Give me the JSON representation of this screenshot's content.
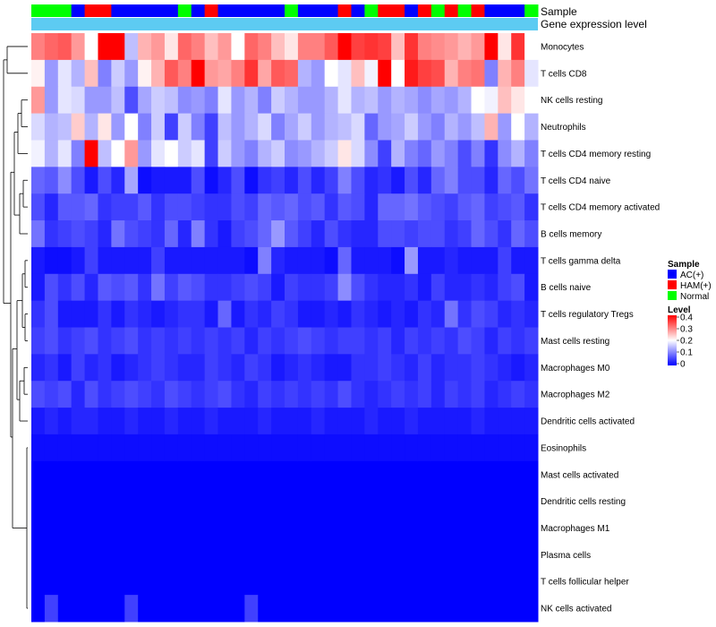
{
  "chart_data": {
    "type": "heatmap",
    "annotations": {
      "sample_label": "Sample",
      "gene_label": "Gene expression level",
      "sample_groups": [
        "Normal",
        "Normal",
        "Normal",
        "AC(+)",
        "HAM(+)",
        "HAM(+)",
        "AC(+)",
        "AC(+)",
        "AC(+)",
        "AC(+)",
        "AC(+)",
        "Normal",
        "AC(+)",
        "HAM(+)",
        "AC(+)",
        "AC(+)",
        "AC(+)",
        "AC(+)",
        "AC(+)",
        "Normal",
        "AC(+)",
        "AC(+)",
        "AC(+)",
        "HAM(+)",
        "AC(+)",
        "Normal",
        "HAM(+)",
        "HAM(+)",
        "AC(+)",
        "HAM(+)",
        "Normal",
        "HAM(+)",
        "Normal",
        "HAM(+)",
        "AC(+)",
        "AC(+)",
        "AC(+)",
        "Normal"
      ]
    },
    "rows": [
      "Monocytes",
      "T cells CD8",
      "NK cells resting",
      "Neutrophils",
      "T cells CD4 memory resting",
      "T cells CD4 naive",
      "T cells CD4 memory activated",
      "B cells memory",
      "T cells gamma delta",
      "B cells naive",
      "T cells regulatory  Tregs",
      "Mast cells resting",
      "Macrophages M0",
      "Macrophages M2",
      "Dendritic cells activated",
      "Eosinophils",
      "Mast cells activated",
      "Dendritic cells resting",
      "Macrophages M1",
      "Plasma cells",
      "T cells follicular helper",
      "NK cells activated"
    ],
    "values": [
      [
        0.3,
        0.32,
        0.33,
        0.28,
        0.2,
        0.42,
        0.42,
        0.15,
        0.26,
        0.28,
        0.22,
        0.32,
        0.3,
        0.25,
        0.28,
        0.2,
        0.32,
        0.3,
        0.25,
        0.22,
        0.3,
        0.3,
        0.33,
        0.42,
        0.35,
        0.36,
        0.35,
        0.25,
        0.36,
        0.3,
        0.29,
        0.28,
        0.26,
        0.28,
        0.4,
        0.22,
        0.36,
        0.2
      ],
      [
        0.21,
        0.12,
        0.18,
        0.14,
        0.25,
        0.1,
        0.16,
        0.12,
        0.21,
        0.26,
        0.33,
        0.3,
        0.4,
        0.28,
        0.27,
        0.3,
        0.36,
        0.27,
        0.33,
        0.32,
        0.14,
        0.12,
        0.2,
        0.18,
        0.25,
        0.19,
        0.4,
        0.2,
        0.38,
        0.35,
        0.34,
        0.26,
        0.3,
        0.31,
        0.1,
        0.26,
        0.3,
        0.18
      ],
      [
        0.28,
        0.12,
        0.18,
        0.17,
        0.12,
        0.12,
        0.15,
        0.06,
        0.13,
        0.16,
        0.15,
        0.11,
        0.12,
        0.1,
        0.18,
        0.12,
        0.14,
        0.1,
        0.16,
        0.14,
        0.12,
        0.12,
        0.14,
        0.18,
        0.14,
        0.15,
        0.12,
        0.14,
        0.13,
        0.11,
        0.13,
        0.12,
        0.14,
        0.2,
        0.19,
        0.25,
        0.22,
        0.2
      ],
      [
        0.17,
        0.14,
        0.15,
        0.24,
        0.14,
        0.22,
        0.12,
        0.2,
        0.1,
        0.16,
        0.05,
        0.16,
        0.1,
        0.05,
        0.15,
        0.12,
        0.14,
        0.17,
        0.1,
        0.13,
        0.16,
        0.12,
        0.14,
        0.15,
        0.17,
        0.08,
        0.12,
        0.13,
        0.16,
        0.12,
        0.1,
        0.14,
        0.12,
        0.15,
        0.26,
        0.12,
        0.2,
        0.14
      ],
      [
        0.19,
        0.14,
        0.18,
        0.1,
        0.4,
        0.15,
        0.2,
        0.28,
        0.12,
        0.18,
        0.2,
        0.16,
        0.18,
        0.05,
        0.16,
        0.12,
        0.1,
        0.14,
        0.16,
        0.11,
        0.12,
        0.14,
        0.16,
        0.22,
        0.17,
        0.11,
        0.05,
        0.14,
        0.1,
        0.08,
        0.12,
        0.1,
        0.06,
        0.1,
        0.04,
        0.11,
        0.14,
        0.1
      ],
      [
        0.08,
        0.07,
        0.11,
        0.06,
        0.02,
        0.06,
        0.03,
        0.13,
        0.01,
        0.02,
        0.02,
        0.02,
        0.06,
        0.01,
        0.03,
        0.06,
        0.01,
        0.04,
        0.05,
        0.03,
        0.06,
        0.03,
        0.05,
        0.1,
        0.06,
        0.03,
        0.04,
        0.02,
        0.06,
        0.03,
        0.08,
        0.1,
        0.06,
        0.06,
        0.03,
        0.08,
        0.06,
        0.09
      ],
      [
        0.06,
        0.03,
        0.07,
        0.07,
        0.08,
        0.04,
        0.05,
        0.05,
        0.07,
        0.04,
        0.06,
        0.06,
        0.05,
        0.04,
        0.04,
        0.06,
        0.05,
        0.08,
        0.07,
        0.08,
        0.06,
        0.07,
        0.04,
        0.07,
        0.06,
        0.03,
        0.08,
        0.08,
        0.09,
        0.07,
        0.06,
        0.05,
        0.07,
        0.08,
        0.05,
        0.06,
        0.07,
        0.04
      ],
      [
        0.09,
        0.04,
        0.05,
        0.06,
        0.05,
        0.03,
        0.09,
        0.06,
        0.05,
        0.04,
        0.08,
        0.03,
        0.1,
        0.04,
        0.02,
        0.05,
        0.06,
        0.08,
        0.12,
        0.07,
        0.05,
        0.03,
        0.06,
        0.04,
        0.03,
        0.03,
        0.06,
        0.06,
        0.05,
        0.06,
        0.06,
        0.04,
        0.05,
        0.08,
        0.06,
        0.04,
        0.08,
        0.06
      ],
      [
        0.02,
        0.01,
        0.01,
        0.02,
        0.05,
        0.02,
        0.02,
        0.02,
        0.02,
        0.05,
        0.02,
        0.02,
        0.02,
        0.02,
        0.02,
        0.02,
        0.01,
        0.1,
        0.03,
        0.02,
        0.02,
        0.02,
        0.01,
        0.08,
        0.02,
        0.02,
        0.02,
        0.01,
        0.12,
        0.02,
        0.02,
        0.03,
        0.02,
        0.02,
        0.02,
        0.05,
        0.02,
        0.02
      ],
      [
        0.02,
        0.06,
        0.04,
        0.06,
        0.03,
        0.07,
        0.06,
        0.07,
        0.04,
        0.09,
        0.05,
        0.07,
        0.06,
        0.04,
        0.04,
        0.05,
        0.06,
        0.05,
        0.02,
        0.05,
        0.04,
        0.04,
        0.05,
        0.11,
        0.06,
        0.04,
        0.03,
        0.03,
        0.04,
        0.02,
        0.05,
        0.03,
        0.03,
        0.04,
        0.03,
        0.05,
        0.06,
        0.02
      ],
      [
        0.04,
        0.06,
        0.02,
        0.02,
        0.02,
        0.04,
        0.02,
        0.04,
        0.03,
        0.02,
        0.03,
        0.04,
        0.04,
        0.02,
        0.08,
        0.02,
        0.04,
        0.03,
        0.05,
        0.04,
        0.02,
        0.02,
        0.03,
        0.02,
        0.04,
        0.03,
        0.02,
        0.03,
        0.02,
        0.04,
        0.03,
        0.09,
        0.04,
        0.06,
        0.05,
        0.03,
        0.04,
        0.03
      ],
      [
        0.05,
        0.06,
        0.04,
        0.05,
        0.06,
        0.04,
        0.05,
        0.06,
        0.04,
        0.05,
        0.04,
        0.05,
        0.04,
        0.05,
        0.04,
        0.05,
        0.03,
        0.05,
        0.04,
        0.05,
        0.06,
        0.05,
        0.04,
        0.05,
        0.05,
        0.04,
        0.05,
        0.03,
        0.05,
        0.04,
        0.05,
        0.04,
        0.06,
        0.05,
        0.03,
        0.05,
        0.04,
        0.05
      ],
      [
        0.03,
        0.04,
        0.02,
        0.05,
        0.03,
        0.04,
        0.02,
        0.03,
        0.04,
        0.05,
        0.04,
        0.03,
        0.03,
        0.05,
        0.04,
        0.03,
        0.05,
        0.04,
        0.02,
        0.03,
        0.04,
        0.03,
        0.02,
        0.02,
        0.04,
        0.04,
        0.05,
        0.04,
        0.03,
        0.05,
        0.03,
        0.04,
        0.04,
        0.05,
        0.04,
        0.03,
        0.02,
        0.03
      ],
      [
        0.06,
        0.05,
        0.06,
        0.03,
        0.06,
        0.04,
        0.05,
        0.06,
        0.05,
        0.04,
        0.06,
        0.05,
        0.04,
        0.05,
        0.06,
        0.04,
        0.03,
        0.05,
        0.04,
        0.05,
        0.04,
        0.05,
        0.04,
        0.06,
        0.04,
        0.03,
        0.04,
        0.05,
        0.04,
        0.05,
        0.03,
        0.05,
        0.04,
        0.05,
        0.03,
        0.04,
        0.05,
        0.04
      ],
      [
        0.02,
        0.03,
        0.02,
        0.03,
        0.03,
        0.02,
        0.02,
        0.03,
        0.02,
        0.02,
        0.03,
        0.02,
        0.02,
        0.03,
        0.02,
        0.02,
        0.02,
        0.03,
        0.02,
        0.02,
        0.02,
        0.03,
        0.02,
        0.02,
        0.02,
        0.03,
        0.02,
        0.02,
        0.03,
        0.02,
        0.02,
        0.02,
        0.02,
        0.03,
        0.02,
        0.02,
        0.02,
        0.02
      ],
      [
        0.01,
        0.01,
        0.01,
        0.01,
        0.01,
        0.01,
        0.01,
        0.01,
        0.01,
        0.01,
        0.01,
        0.01,
        0.01,
        0.01,
        0.01,
        0.01,
        0.01,
        0.01,
        0.01,
        0.01,
        0.01,
        0.01,
        0.01,
        0.01,
        0.01,
        0.01,
        0.01,
        0.01,
        0.01,
        0.01,
        0.01,
        0.01,
        0.01,
        0.01,
        0.01,
        0.01,
        0.01,
        0.01
      ],
      [
        0.0,
        0.0,
        0.0,
        0.0,
        0.0,
        0.0,
        0.0,
        0.0,
        0.0,
        0.0,
        0.0,
        0.0,
        0.0,
        0.0,
        0.0,
        0.0,
        0.0,
        0.0,
        0.0,
        0.0,
        0.0,
        0.0,
        0.0,
        0.0,
        0.0,
        0.0,
        0.0,
        0.0,
        0.0,
        0.0,
        0.0,
        0.0,
        0.0,
        0.0,
        0.0,
        0.0,
        0.0,
        0.0
      ],
      [
        0.0,
        0.0,
        0.0,
        0.0,
        0.0,
        0.0,
        0.0,
        0.0,
        0.0,
        0.0,
        0.0,
        0.0,
        0.0,
        0.0,
        0.0,
        0.0,
        0.0,
        0.0,
        0.0,
        0.0,
        0.0,
        0.0,
        0.0,
        0.0,
        0.0,
        0.0,
        0.0,
        0.0,
        0.0,
        0.0,
        0.0,
        0.0,
        0.0,
        0.0,
        0.0,
        0.0,
        0.0,
        0.0
      ],
      [
        0.0,
        0.0,
        0.0,
        0.0,
        0.0,
        0.0,
        0.0,
        0.0,
        0.0,
        0.0,
        0.0,
        0.0,
        0.0,
        0.0,
        0.0,
        0.0,
        0.0,
        0.0,
        0.0,
        0.0,
        0.0,
        0.0,
        0.0,
        0.0,
        0.0,
        0.0,
        0.0,
        0.0,
        0.0,
        0.0,
        0.0,
        0.0,
        0.0,
        0.0,
        0.0,
        0.0,
        0.0,
        0.0
      ],
      [
        0.0,
        0.0,
        0.0,
        0.0,
        0.0,
        0.0,
        0.0,
        0.0,
        0.0,
        0.0,
        0.0,
        0.0,
        0.0,
        0.0,
        0.0,
        0.0,
        0.0,
        0.0,
        0.0,
        0.0,
        0.0,
        0.0,
        0.0,
        0.0,
        0.0,
        0.0,
        0.0,
        0.0,
        0.0,
        0.0,
        0.0,
        0.0,
        0.0,
        0.0,
        0.0,
        0.0,
        0.0,
        0.0
      ],
      [
        0.0,
        0.0,
        0.0,
        0.0,
        0.0,
        0.0,
        0.0,
        0.0,
        0.0,
        0.0,
        0.0,
        0.0,
        0.0,
        0.0,
        0.0,
        0.0,
        0.0,
        0.0,
        0.0,
        0.0,
        0.0,
        0.0,
        0.0,
        0.0,
        0.0,
        0.0,
        0.0,
        0.0,
        0.0,
        0.0,
        0.0,
        0.0,
        0.0,
        0.0,
        0.0,
        0.0,
        0.0,
        0.0
      ],
      [
        0.0,
        0.05,
        0.0,
        0.0,
        0.0,
        0.0,
        0.0,
        0.05,
        0.0,
        0.0,
        0.0,
        0.0,
        0.0,
        0.0,
        0.0,
        0.0,
        0.05,
        0.0,
        0.0,
        0.0,
        0.0,
        0.0,
        0.0,
        0.0,
        0.0,
        0.0,
        0.0,
        0.0,
        0.0,
        0.0,
        0.0,
        0.0,
        0.0,
        0.0,
        0.0,
        0.0,
        0.0,
        0.0
      ]
    ],
    "legend": {
      "sample_title": "Sample",
      "sample_entries": [
        {
          "label": "AC(+)",
          "color": "#0000ff"
        },
        {
          "label": "HAM(+)",
          "color": "#ff0000"
        },
        {
          "label": "Normal",
          "color": "#00ff00"
        }
      ],
      "level_title": "Level",
      "level_ticks": [
        "0.4",
        "0.3",
        "0.2",
        "0.1",
        "0"
      ],
      "level_range": [
        0,
        0.4
      ]
    },
    "colors": {
      "low": "#0000ff",
      "mid": "#ffffff",
      "high": "#ff0000",
      "gene_level": "#5dcbf2"
    }
  }
}
